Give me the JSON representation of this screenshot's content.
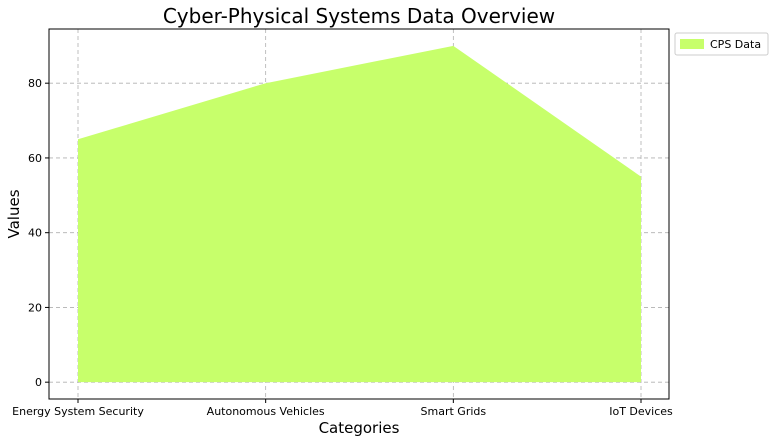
{
  "chart_data": {
    "type": "area",
    "title": "Cyber-Physical Systems Data Overview",
    "xlabel": "Categories",
    "ylabel": "Values",
    "categories": [
      "Energy System Security",
      "Autonomous Vehicles",
      "Smart Grids",
      "IoT Devices"
    ],
    "series": [
      {
        "name": "CPS Data",
        "values": [
          65,
          80,
          90,
          55
        ],
        "color": "#c7ff6b"
      }
    ],
    "ylim": [
      -4.5,
      94.5
    ],
    "yticks": [
      0,
      20,
      40,
      60,
      80
    ],
    "grid": true,
    "grid_color": "#b0b0b0",
    "legend_position": "outside-top-right"
  }
}
